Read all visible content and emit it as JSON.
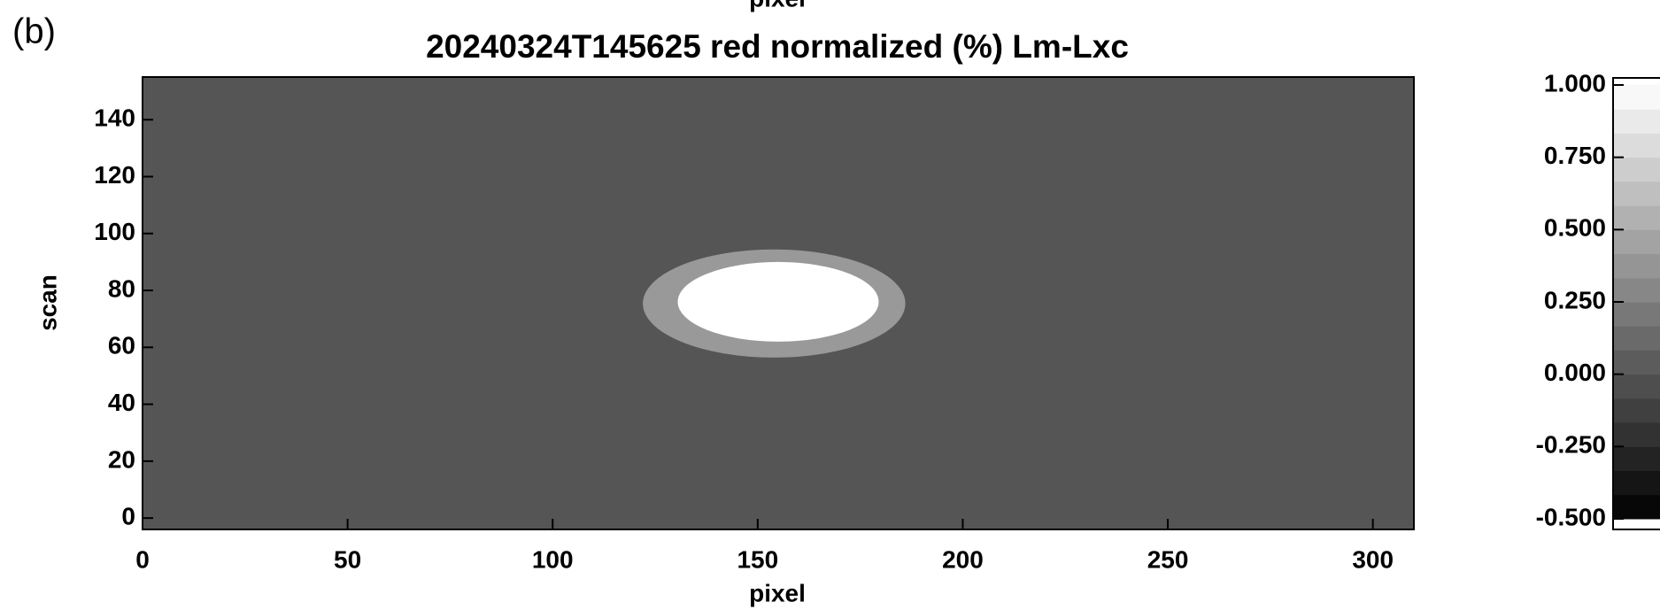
{
  "panel_label": "(b)",
  "chart_data": {
    "type": "heatmap",
    "top_label": "pixel",
    "title": "20240324T145625  red normalized (%) Lm-Lxc",
    "x_label": "pixel",
    "y_label": "scan",
    "xlim": [
      0,
      310
    ],
    "xticks": [
      0,
      50,
      100,
      150,
      200,
      250,
      300
    ],
    "ylim": [
      -4,
      155
    ],
    "yticks": [
      0,
      20,
      40,
      60,
      80,
      100,
      120,
      140
    ],
    "background": 0.0,
    "regions": [
      {
        "value": 0.4,
        "cx": 154,
        "cy": 75.4,
        "rx": 32,
        "ry": 19
      },
      {
        "value": 1.0,
        "cx": 155,
        "cy": 76,
        "rx": 24.5,
        "ry": 14
      }
    ],
    "colormap": "gray",
    "clim": [
      -0.5,
      1.0
    ],
    "cticks": [
      {
        "value": -0.5,
        "label": "-0.500"
      },
      {
        "value": -0.25,
        "label": "-0.250"
      },
      {
        "value": 0.0,
        "label": "0.000"
      },
      {
        "value": 0.25,
        "label": "0.250"
      },
      {
        "value": 0.5,
        "label": "0.500"
      },
      {
        "value": 0.75,
        "label": "0.750"
      },
      {
        "value": 1.0,
        "label": "1.000"
      }
    ]
  }
}
